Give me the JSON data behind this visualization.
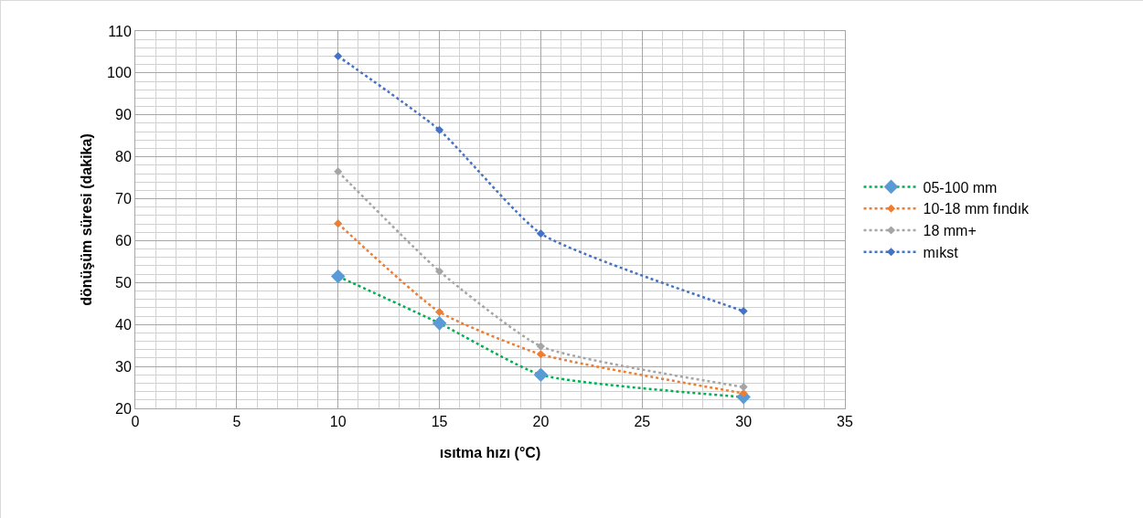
{
  "chart_data": {
    "type": "line",
    "xlabel": "ısıtma hızı (°C)",
    "ylabel": "dönüşüm süresi (dakika)",
    "x": [
      10,
      15,
      20,
      30
    ],
    "series": [
      {
        "name": "05-100 mm",
        "color": "#00b050",
        "colors": [
          "#5b9bd5",
          "#5b9bd5",
          "#5b9bd5",
          "#5b9bd5"
        ],
        "values": [
          51.5,
          40.3,
          28.0,
          22.7
        ]
      },
      {
        "name": "10-18 mm fındık",
        "color": "#ed7d31",
        "values": [
          64.1,
          43.0,
          32.9,
          23.6
        ]
      },
      {
        "name": "18 mm+",
        "color": "#a5a5a5",
        "values": [
          76.5,
          52.7,
          34.8,
          25.1
        ]
      },
      {
        "name": "mıkst",
        "color": "#4472c4",
        "values": [
          104.0,
          86.4,
          61.7,
          43.2
        ]
      }
    ],
    "xlim": [
      0,
      35
    ],
    "xticks": [
      0,
      5,
      10,
      15,
      20,
      25,
      30,
      35
    ],
    "ylim": [
      20,
      110
    ],
    "yticks": [
      20,
      30,
      40,
      50,
      60,
      70,
      80,
      90,
      100,
      110
    ],
    "grid": true,
    "legend": "right",
    "marker": "diamond",
    "line_style": "dotted"
  }
}
